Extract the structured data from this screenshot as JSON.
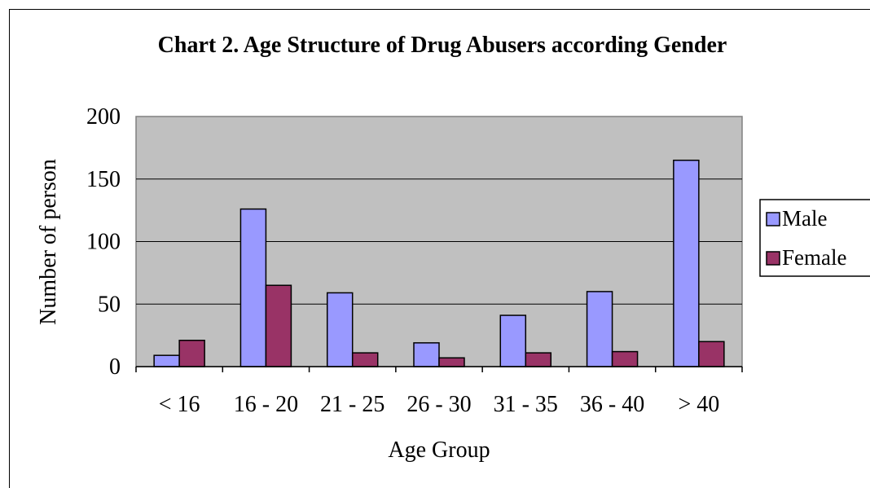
{
  "chart_data": {
    "type": "bar",
    "title": "Chart 2. Age Structure of Drug Abusers according Gender",
    "xlabel": "Age Group",
    "ylabel": "Number of person",
    "categories": [
      "< 16",
      "16 - 20",
      "21 - 25",
      "26 - 30",
      "31 - 35",
      "36 - 40",
      "> 40"
    ],
    "series": [
      {
        "name": "Male",
        "values": [
          9,
          126,
          59,
          19,
          41,
          60,
          165
        ]
      },
      {
        "name": "Female",
        "values": [
          21,
          65,
          11,
          7,
          11,
          12,
          20
        ]
      }
    ],
    "ylim": [
      0,
      200
    ],
    "yticks": [
      0,
      50,
      100,
      150,
      200
    ],
    "grid": true,
    "legend_position": "right",
    "colors": {
      "plot_background": "#c0c0c0",
      "Male": "#9999ff",
      "Female": "#993366",
      "gridline": "#000000"
    }
  }
}
